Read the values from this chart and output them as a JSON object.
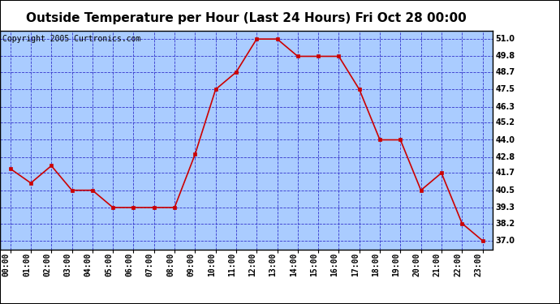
{
  "title": "Outside Temperature per Hour (Last 24 Hours) Fri Oct 28 00:00",
  "copyright": "Copyright 2005 Curtronics.com",
  "hours": [
    "00:00",
    "01:00",
    "02:00",
    "03:00",
    "04:00",
    "05:00",
    "06:00",
    "07:00",
    "08:00",
    "09:00",
    "10:00",
    "11:00",
    "12:00",
    "13:00",
    "14:00",
    "15:00",
    "16:00",
    "17:00",
    "18:00",
    "19:00",
    "20:00",
    "21:00",
    "22:00",
    "23:00"
  ],
  "temps": [
    42.0,
    41.0,
    42.2,
    40.5,
    40.5,
    39.3,
    39.3,
    39.3,
    39.3,
    43.0,
    47.5,
    48.7,
    51.0,
    51.0,
    49.8,
    49.8,
    49.8,
    47.5,
    44.0,
    44.0,
    40.5,
    41.7,
    38.2,
    37.0
  ],
  "line_color": "#cc0000",
  "marker_color": "#cc0000",
  "bg_color": "#aaccff",
  "outer_bg_color": "#ffffff",
  "grid_color": "#3333cc",
  "border_color": "#000000",
  "title_fontsize": 11,
  "copyright_fontsize": 7,
  "tick_fontsize": 7,
  "yticks": [
    37.0,
    38.2,
    39.3,
    40.5,
    41.7,
    42.8,
    44.0,
    45.2,
    46.3,
    47.5,
    48.7,
    49.8,
    51.0
  ],
  "ylim_min": 36.4,
  "ylim_max": 51.6
}
